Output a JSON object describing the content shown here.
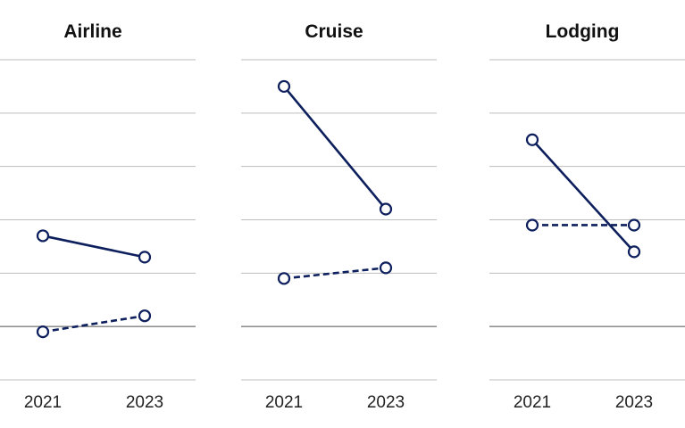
{
  "chart_data": {
    "type": "line",
    "colors": {
      "series": "#0d1f5c",
      "grid": "#bdbdbd",
      "baseline": "#7f7f7f",
      "marker_fill": "#ffffff"
    },
    "grid": true,
    "legend": "none",
    "ylim": [
      -1,
      5
    ],
    "x": [
      "2021",
      "2023"
    ],
    "panels": [
      {
        "title": "Airline",
        "series": [
          {
            "style": "solid",
            "values": [
              1.7,
              1.3
            ]
          },
          {
            "style": "dashed",
            "values": [
              -0.1,
              0.2
            ]
          }
        ]
      },
      {
        "title": "Cruise",
        "series": [
          {
            "style": "solid",
            "values": [
              4.5,
              2.2
            ]
          },
          {
            "style": "dashed",
            "values": [
              0.9,
              1.1
            ]
          }
        ]
      },
      {
        "title": "Lodging",
        "series": [
          {
            "style": "solid",
            "values": [
              3.5,
              1.4
            ]
          },
          {
            "style": "dashed",
            "values": [
              1.9,
              1.9
            ]
          }
        ]
      }
    ]
  }
}
